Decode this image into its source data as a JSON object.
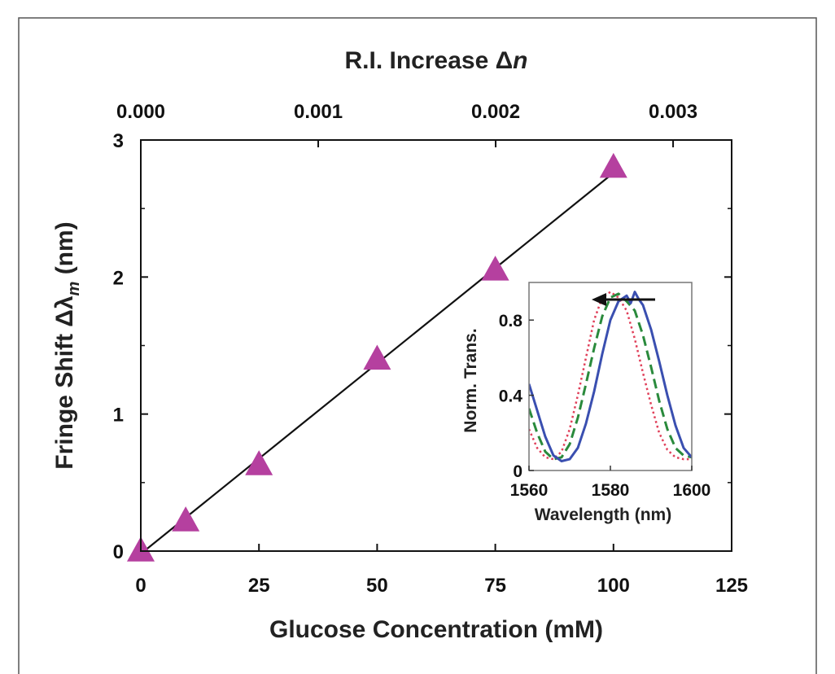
{
  "chart_data": [
    {
      "type": "scatter",
      "title": "",
      "xlabel": "Glucose Concentration (mM)",
      "ylabel_main": "Fringe Shift Δλ",
      "ylabel_sub": "m",
      "ylabel_unit": " (nm)",
      "x2label_main": "R.I. Increase Δ",
      "x2label_var": "n",
      "xlim": [
        0,
        125
      ],
      "ylim": [
        0,
        3
      ],
      "xticks": [
        0,
        25,
        50,
        75,
        100,
        125
      ],
      "xtick_labels": [
        "0",
        "25",
        "50",
        "75",
        "100",
        "125"
      ],
      "yticks": [
        0,
        1,
        2,
        3
      ],
      "ytick_labels": [
        "0",
        "1",
        "2",
        "3"
      ],
      "x2ticks": [
        0.0,
        0.001,
        0.002,
        0.003
      ],
      "x2tick_labels": [
        "0.000",
        "0.001",
        "0.002",
        "0.003"
      ],
      "x2lim": [
        0.0,
        0.00333
      ],
      "grid": false,
      "series": [
        {
          "marker": "triangle",
          "color": "#b5409f",
          "x": [
            0,
            9.5,
            25,
            50,
            75,
            100
          ],
          "y": [
            0.0,
            0.22,
            0.63,
            1.4,
            2.05,
            2.8
          ]
        }
      ],
      "fit_line": {
        "color": "#111111",
        "x": [
          0,
          100
        ],
        "y": [
          -0.02,
          2.76
        ]
      }
    },
    {
      "type": "line",
      "title": "",
      "xlabel": "Wavelength (nm)",
      "ylabel": "Norm. Trans.",
      "xlim": [
        1560,
        1600
      ],
      "ylim": [
        0,
        1.0
      ],
      "xticks": [
        1560,
        1580,
        1600
      ],
      "xtick_labels": [
        "1560",
        "1580",
        "1600"
      ],
      "yticks": [
        0,
        0.4,
        0.8
      ],
      "ytick_labels": [
        "0",
        "0.4",
        "0.8"
      ],
      "grid": false,
      "annotation": {
        "type": "arrow",
        "direction": "left",
        "color": "#111111"
      },
      "series": [
        {
          "style": "solid",
          "color": "#3a4fb0",
          "x": [
            1560,
            1562,
            1564,
            1566,
            1568,
            1570,
            1572,
            1574,
            1576,
            1578,
            1580,
            1582,
            1584,
            1585,
            1586,
            1587,
            1588,
            1590,
            1592,
            1594,
            1596,
            1598,
            1600
          ],
          "y": [
            0.46,
            0.32,
            0.18,
            0.08,
            0.05,
            0.06,
            0.12,
            0.25,
            0.42,
            0.62,
            0.8,
            0.9,
            0.93,
            0.89,
            0.95,
            0.91,
            0.88,
            0.75,
            0.58,
            0.4,
            0.24,
            0.12,
            0.07
          ]
        },
        {
          "style": "dashed",
          "color": "#2a8a3c",
          "x": [
            1560,
            1562,
            1564,
            1566,
            1568,
            1570,
            1572,
            1574,
            1576,
            1578,
            1580,
            1582,
            1584,
            1586,
            1588,
            1590,
            1592,
            1594,
            1596,
            1598,
            1600
          ],
          "y": [
            0.33,
            0.2,
            0.1,
            0.06,
            0.07,
            0.14,
            0.28,
            0.46,
            0.65,
            0.82,
            0.92,
            0.94,
            0.9,
            0.85,
            0.72,
            0.55,
            0.37,
            0.22,
            0.12,
            0.08,
            0.07
          ]
        },
        {
          "style": "dotted",
          "color": "#e0405a",
          "x": [
            1560,
            1562,
            1564,
            1566,
            1568,
            1570,
            1572,
            1574,
            1576,
            1578,
            1580,
            1582,
            1584,
            1586,
            1588,
            1590,
            1592,
            1594,
            1596,
            1598,
            1600
          ],
          "y": [
            0.22,
            0.12,
            0.07,
            0.06,
            0.1,
            0.22,
            0.4,
            0.6,
            0.8,
            0.92,
            0.95,
            0.92,
            0.85,
            0.7,
            0.52,
            0.35,
            0.2,
            0.11,
            0.07,
            0.06,
            0.06
          ]
        }
      ]
    }
  ]
}
